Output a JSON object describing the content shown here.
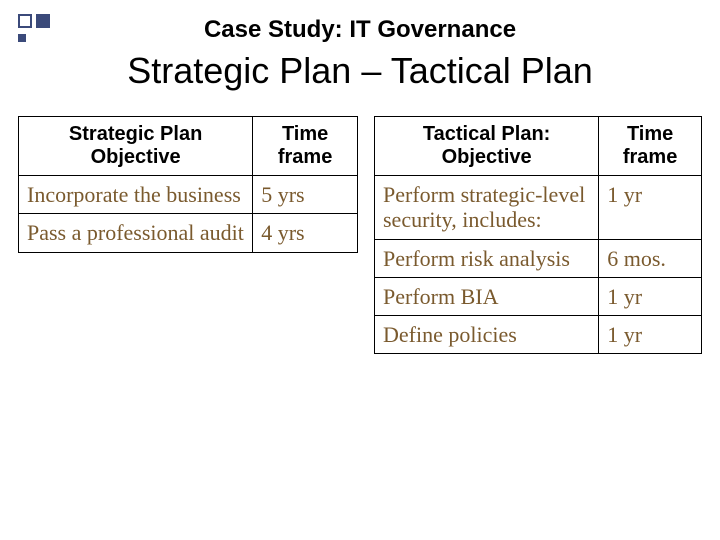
{
  "title": {
    "overline": "Case Study: IT Governance",
    "main": "Strategic Plan – Tactical Plan"
  },
  "left_table": {
    "type": "table",
    "header_bg": "#ffffff",
    "header_font": "Arial",
    "header_fontsize": 20,
    "cell_font": "Comic Sans MS",
    "cell_color": "#7a5a2e",
    "cell_fontsize": 22,
    "border_color": "#000000",
    "columns": [
      "Strategic Plan Objective",
      "Time frame"
    ],
    "rows": [
      [
        "Incorporate the business",
        "5 yrs"
      ],
      [
        "Pass a professional audit",
        "4 yrs"
      ]
    ]
  },
  "right_table": {
    "type": "table",
    "header_bg": "#ffffff",
    "header_font": "Arial",
    "header_fontsize": 20,
    "cell_font": "Comic Sans MS",
    "cell_color": "#7a5a2e",
    "cell_fontsize": 22,
    "border_color": "#000000",
    "columns": [
      "Tactical Plan: Objective",
      "Time frame"
    ],
    "rows": [
      [
        "Perform strategic-level security, includes:",
        "1 yr"
      ],
      [
        "Perform risk analysis",
        "6 mos."
      ],
      [
        "Perform BIA",
        "1 yr"
      ],
      [
        "Define policies",
        "1 yr"
      ]
    ]
  },
  "decoration": {
    "accent_color": "#3b4a7a"
  }
}
